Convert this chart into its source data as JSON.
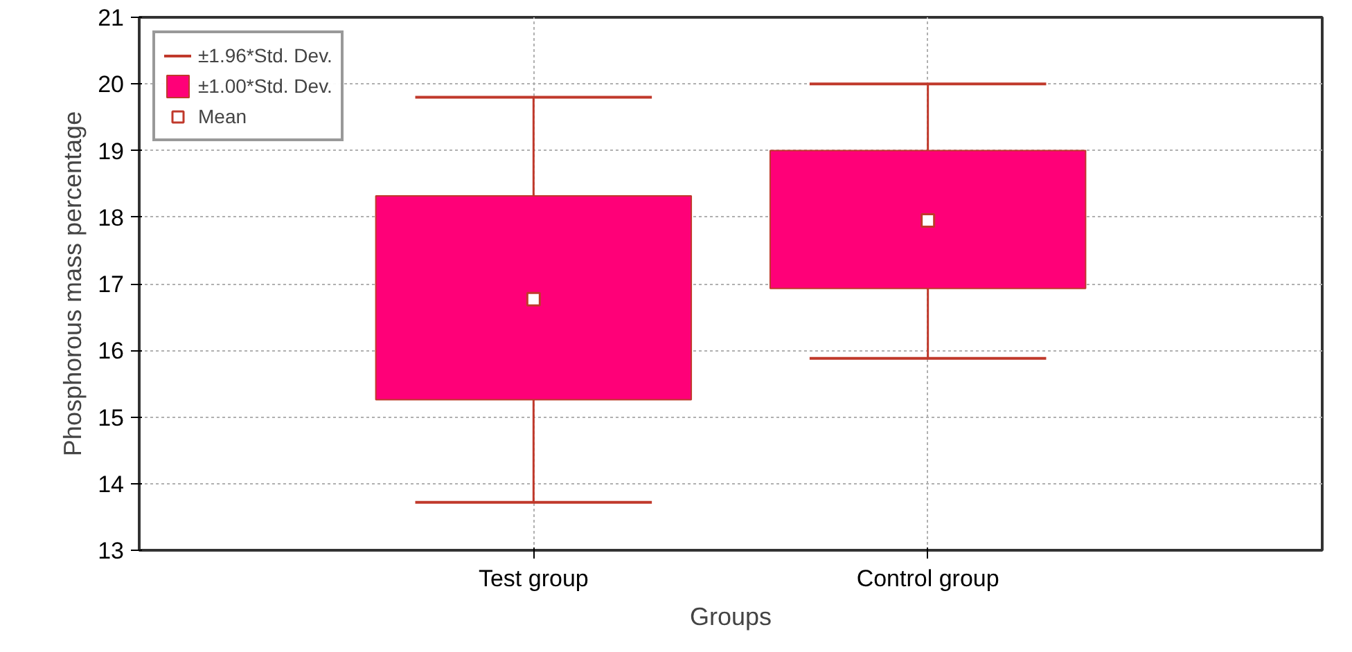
{
  "chart_data": {
    "type": "box",
    "xlabel": "Groups",
    "ylabel": "Phosphorous mass percentage",
    "categories": [
      "Test group",
      "Control group"
    ],
    "series": [
      {
        "name": "±1.00*Std. Dev.",
        "color": "#ff0078",
        "boxes": [
          {
            "low": 13.72,
            "q1": 15.26,
            "q3": 18.32,
            "high": 19.8
          },
          {
            "low": 15.88,
            "q1": 16.93,
            "q3": 19.0,
            "high": 20.0
          }
        ]
      },
      {
        "type": "scatter",
        "name": "Mean",
        "color": "#ffffff",
        "x": [
          "Test group",
          "Control group"
        ],
        "values": [
          16.77,
          17.95
        ]
      }
    ],
    "ylim": [
      13,
      21
    ],
    "yticks": [
      13,
      14,
      15,
      16,
      17,
      18,
      19,
      20,
      21
    ],
    "grid": true,
    "legend": "top left",
    "marker": "square",
    "annotations": [
      "±1.96*Std. Dev."
    ]
  }
}
